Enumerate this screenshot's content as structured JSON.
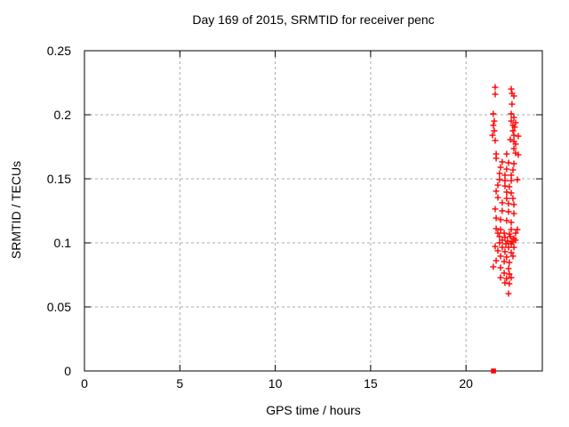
{
  "chart_data": {
    "type": "scatter",
    "title": "Day 169 of 2015, SRMTID for receiver penc",
    "xlabel": "GPS time / hours",
    "ylabel": "SRMTID / TECUs",
    "xlim": [
      0,
      24
    ],
    "ylim": [
      0,
      0.25
    ],
    "x_ticks": [
      0,
      5,
      10,
      15,
      20
    ],
    "x_tick_labels": [
      "0",
      "5",
      "10",
      "15",
      "20"
    ],
    "y_ticks": [
      0,
      0.05,
      0.1,
      0.15,
      0.2,
      0.25
    ],
    "y_tick_labels": [
      "0",
      "0.05",
      "0.1",
      "0.15",
      "0.2",
      "0.25"
    ],
    "grid": "dashed",
    "legend": "none",
    "series": [
      {
        "name": "SRMTID",
        "marker": "plus",
        "color": "#ff0000",
        "points": [
          [
            21.53,
            0.2215
          ],
          [
            21.53,
            0.216
          ],
          [
            22.37,
            0.2201
          ],
          [
            22.41,
            0.2167
          ],
          [
            22.51,
            0.2146
          ],
          [
            22.41,
            0.2083
          ],
          [
            21.43,
            0.2007
          ],
          [
            22.37,
            0.2007
          ],
          [
            22.51,
            0.1979
          ],
          [
            21.48,
            0.1951
          ],
          [
            22.37,
            0.1951
          ],
          [
            22.6,
            0.1938
          ],
          [
            21.43,
            0.1917
          ],
          [
            22.46,
            0.1917
          ],
          [
            22.55,
            0.1903
          ],
          [
            21.48,
            0.1875
          ],
          [
            22.46,
            0.1875
          ],
          [
            21.39,
            0.184
          ],
          [
            22.51,
            0.184
          ],
          [
            22.74,
            0.1833
          ],
          [
            22.32,
            0.1806
          ],
          [
            21.53,
            0.1799
          ],
          [
            22.51,
            0.1792
          ],
          [
            22.6,
            0.1771
          ],
          [
            22.51,
            0.1736
          ],
          [
            21.58,
            0.1694
          ],
          [
            22.13,
            0.1694
          ],
          [
            22.6,
            0.1701
          ],
          [
            22.74,
            0.1688
          ],
          [
            21.58,
            0.166
          ],
          [
            21.9,
            0.1632
          ],
          [
            22.23,
            0.1625
          ],
          [
            22.51,
            0.1618
          ],
          [
            21.81,
            0.159
          ],
          [
            22.13,
            0.1576
          ],
          [
            22.46,
            0.1569
          ],
          [
            21.76,
            0.1542
          ],
          [
            22.04,
            0.1528
          ],
          [
            22.37,
            0.1528
          ],
          [
            21.76,
            0.1493
          ],
          [
            22.04,
            0.1486
          ],
          [
            22.37,
            0.1486
          ],
          [
            22.69,
            0.1493
          ],
          [
            21.67,
            0.1451
          ],
          [
            22.04,
            0.1444
          ],
          [
            22.27,
            0.1438
          ],
          [
            21.58,
            0.1403
          ],
          [
            22.13,
            0.1396
          ],
          [
            22.37,
            0.1389
          ],
          [
            21.67,
            0.1354
          ],
          [
            22.13,
            0.1347
          ],
          [
            22.46,
            0.1347
          ],
          [
            21.9,
            0.1313
          ],
          [
            22.23,
            0.1306
          ],
          [
            22.51,
            0.1299
          ],
          [
            21.53,
            0.1264
          ],
          [
            21.9,
            0.125
          ],
          [
            22.23,
            0.1243
          ],
          [
            22.51,
            0.1229
          ],
          [
            21.58,
            0.1194
          ],
          [
            21.81,
            0.1181
          ],
          [
            22.13,
            0.1174
          ],
          [
            22.37,
            0.116
          ],
          [
            21.58,
            0.1111
          ],
          [
            21.81,
            0.1104
          ],
          [
            22.37,
            0.1104
          ],
          [
            22.69,
            0.1104
          ],
          [
            21.67,
            0.1076
          ],
          [
            22.0,
            0.1076
          ],
          [
            22.27,
            0.1069
          ],
          [
            22.6,
            0.1076
          ],
          [
            21.76,
            0.1049
          ],
          [
            22.04,
            0.1042
          ],
          [
            22.32,
            0.1049
          ],
          [
            22.51,
            0.1035
          ],
          [
            21.9,
            0.1021
          ],
          [
            22.18,
            0.1014
          ],
          [
            22.41,
            0.1007
          ],
          [
            22.6,
            0.1021
          ],
          [
            21.76,
            0.1
          ],
          [
            22.09,
            0.0993
          ],
          [
            22.37,
            0.0993
          ],
          [
            21.53,
            0.0972
          ],
          [
            21.9,
            0.0965
          ],
          [
            22.23,
            0.0965
          ],
          [
            22.51,
            0.0965
          ],
          [
            21.67,
            0.0938
          ],
          [
            22.04,
            0.0931
          ],
          [
            22.37,
            0.0924
          ],
          [
            21.81,
            0.0896
          ],
          [
            22.13,
            0.0889
          ],
          [
            22.46,
            0.0896
          ],
          [
            21.58,
            0.0861
          ],
          [
            22.0,
            0.0854
          ],
          [
            22.27,
            0.0847
          ],
          [
            21.43,
            0.0813
          ],
          [
            21.81,
            0.0806
          ],
          [
            22.23,
            0.0799
          ],
          [
            22.0,
            0.0764
          ],
          [
            22.27,
            0.0757
          ],
          [
            21.81,
            0.0729
          ],
          [
            22.13,
            0.0722
          ],
          [
            22.37,
            0.0729
          ],
          [
            22.04,
            0.0688
          ],
          [
            22.27,
            0.0681
          ],
          [
            22.23,
            0.0604
          ]
        ]
      },
      {
        "name": "zero-level-point",
        "marker": "filled-square",
        "color": "#ff0000",
        "points": [
          [
            21.44,
            0
          ]
        ]
      }
    ]
  },
  "colors": {
    "marker": "#ff0000",
    "grid": "#a8a8a8",
    "axis": "#000000",
    "background": "#ffffff"
  }
}
